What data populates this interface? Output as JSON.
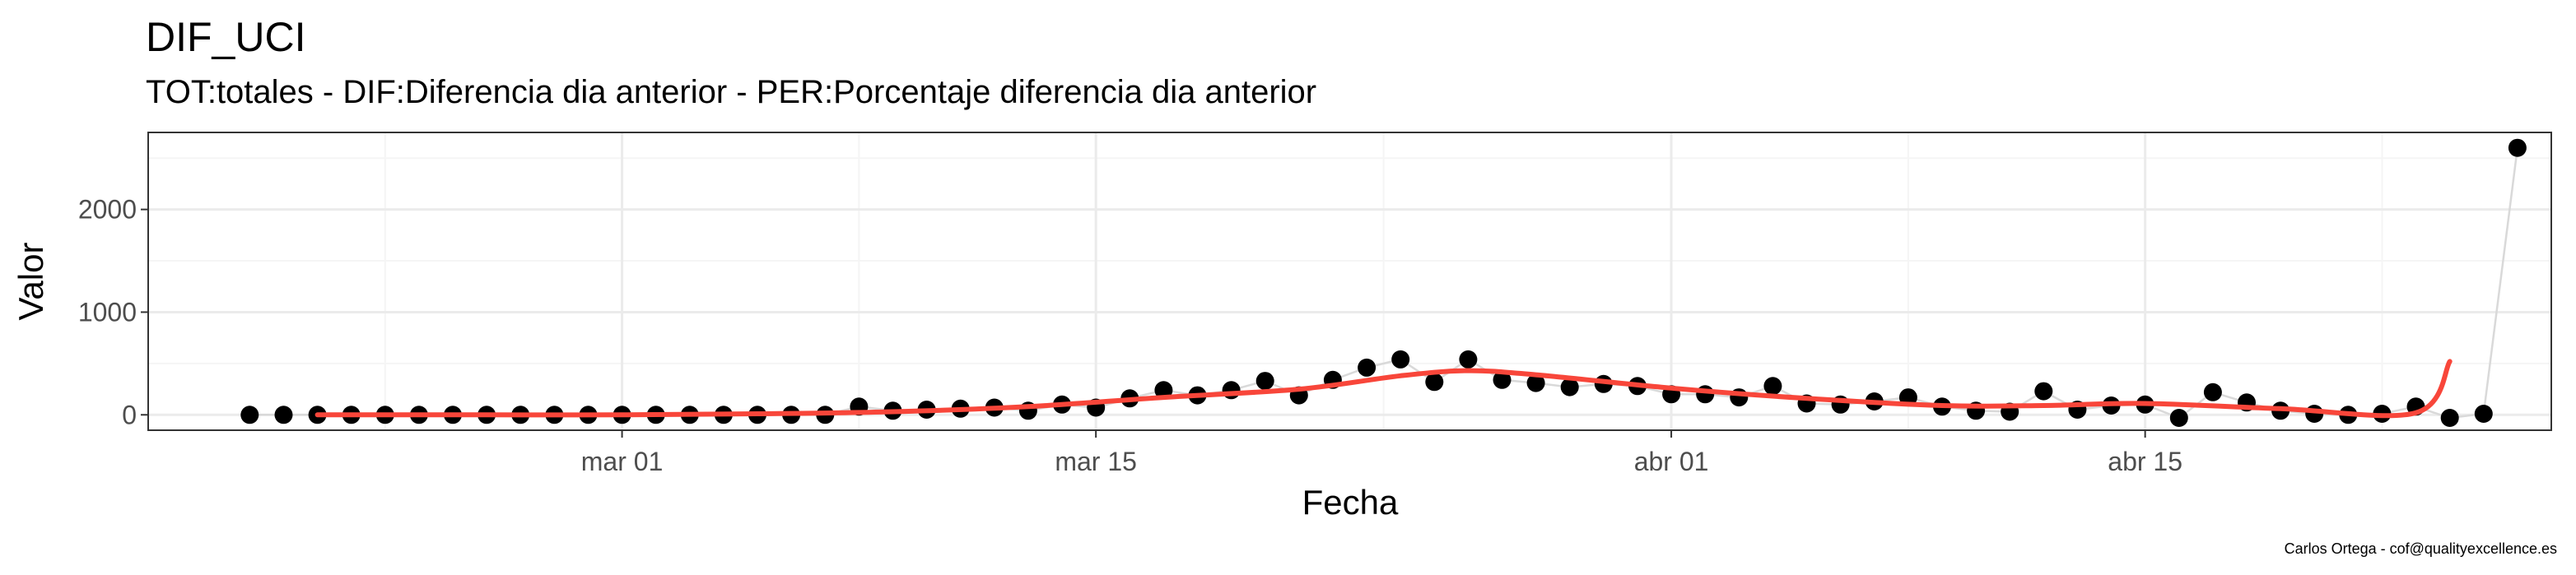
{
  "chart_data": {
    "type": "scatter",
    "title": "DIF_UCI",
    "subtitle": "TOT:totales - DIF:Diferencia dia anterior - PER:Porcentaje diferencia dia anterior",
    "xlabel": "Fecha",
    "ylabel": "Valor",
    "caption": "Carlos Ortega - cof@qualityexcellence.es",
    "x_range": [
      "2020-02-16",
      "2020-04-27"
    ],
    "ylim": [
      -150,
      2750
    ],
    "x_ticks": [
      {
        "date": "2020-03-01",
        "label": "mar 01"
      },
      {
        "date": "2020-03-15",
        "label": "mar 15"
      },
      {
        "date": "2020-04-01",
        "label": "abr 01"
      },
      {
        "date": "2020-04-15",
        "label": "abr 15"
      }
    ],
    "y_ticks": [
      {
        "value": 0,
        "label": "0"
      },
      {
        "value": 1000,
        "label": "1000"
      },
      {
        "value": 2000,
        "label": "2000"
      }
    ],
    "grid": true,
    "colors": {
      "points": "#000000",
      "smooth": "#F8463A",
      "connect_line": "#d9d9d9",
      "grid_major": "#ebebeb",
      "grid_minor": "#f5f5f5",
      "panel_border": "#333333"
    },
    "series": [
      {
        "name": "DIF",
        "x": [
          "2020-02-19",
          "2020-02-20",
          "2020-02-21",
          "2020-02-22",
          "2020-02-23",
          "2020-02-24",
          "2020-02-25",
          "2020-02-26",
          "2020-02-27",
          "2020-02-28",
          "2020-02-29",
          "2020-03-01",
          "2020-03-02",
          "2020-03-03",
          "2020-03-04",
          "2020-03-05",
          "2020-03-06",
          "2020-03-07",
          "2020-03-08",
          "2020-03-09",
          "2020-03-10",
          "2020-03-11",
          "2020-03-12",
          "2020-03-13",
          "2020-03-14",
          "2020-03-15",
          "2020-03-16",
          "2020-03-17",
          "2020-03-18",
          "2020-03-19",
          "2020-03-20",
          "2020-03-21",
          "2020-03-22",
          "2020-03-23",
          "2020-03-24",
          "2020-03-25",
          "2020-03-26",
          "2020-03-27",
          "2020-03-28",
          "2020-03-29",
          "2020-03-30",
          "2020-03-31",
          "2020-04-01",
          "2020-04-02",
          "2020-04-03",
          "2020-04-04",
          "2020-04-05",
          "2020-04-06",
          "2020-04-07",
          "2020-04-08",
          "2020-04-09",
          "2020-04-10",
          "2020-04-11",
          "2020-04-12",
          "2020-04-13",
          "2020-04-14",
          "2020-04-15",
          "2020-04-16",
          "2020-04-17",
          "2020-04-18",
          "2020-04-19",
          "2020-04-20",
          "2020-04-21",
          "2020-04-22",
          "2020-04-23",
          "2020-04-24",
          "2020-04-25",
          "2020-04-26"
        ],
        "values": [
          0,
          0,
          0,
          0,
          0,
          0,
          0,
          0,
          0,
          0,
          0,
          0,
          0,
          0,
          0,
          0,
          0,
          0,
          80,
          40,
          50,
          60,
          70,
          40,
          100,
          70,
          160,
          240,
          190,
          240,
          330,
          190,
          340,
          460,
          540,
          320,
          540,
          340,
          310,
          270,
          300,
          280,
          200,
          200,
          170,
          280,
          110,
          100,
          130,
          170,
          80,
          40,
          30,
          230,
          50,
          90,
          100,
          -30,
          220,
          120,
          40,
          10,
          0,
          10,
          80,
          -30,
          10,
          2600
        ]
      },
      {
        "name": "smooth",
        "x": [
          "2020-02-21",
          "2020-02-26",
          "2020-03-01",
          "2020-03-05",
          "2020-03-09",
          "2020-03-13",
          "2020-03-17",
          "2020-03-21",
          "2020-03-24",
          "2020-03-26",
          "2020-03-28",
          "2020-04-01",
          "2020-04-05",
          "2020-04-09",
          "2020-04-12",
          "2020-04-15",
          "2020-04-19",
          "2020-04-23",
          "2020-04-24"
        ],
        "values": [
          0,
          0,
          0,
          10,
          30,
          80,
          170,
          250,
          380,
          430,
          390,
          260,
          160,
          90,
          90,
          110,
          60,
          20,
          520
        ]
      }
    ]
  }
}
